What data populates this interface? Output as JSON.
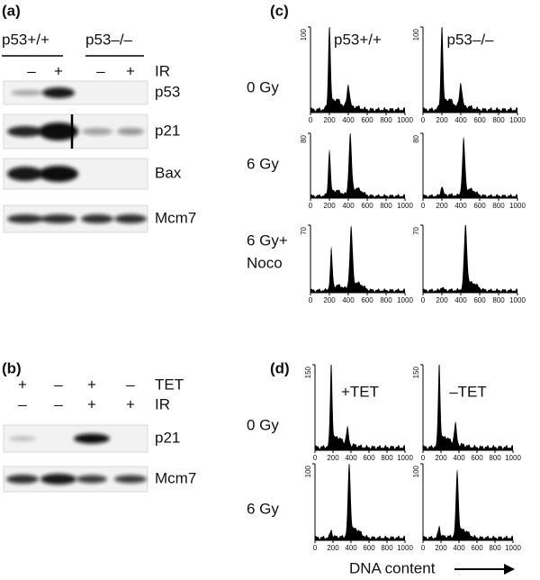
{
  "panel_a": {
    "label": "(a)",
    "genotypes": [
      "p53+/+",
      "p53–/–"
    ],
    "treatment_signs": [
      "–",
      "+",
      "–",
      "+"
    ],
    "treatment": "IR",
    "blots": [
      "p53",
      "p21",
      "Bax",
      "Mcm7"
    ]
  },
  "panel_b": {
    "label": "(b)",
    "rows": [
      {
        "signs": [
          "+",
          "–",
          "+",
          "–"
        ],
        "name": "TET"
      },
      {
        "signs": [
          "–",
          "–",
          "+",
          "+"
        ],
        "name": "IR"
      }
    ],
    "blots": [
      "p21",
      "Mcm7"
    ]
  },
  "panel_c": {
    "label": "(c)",
    "columns": [
      "p53+/+",
      "p53–/–"
    ],
    "rows": [
      {
        "label": [
          "0 Gy"
        ],
        "ymax": 100
      },
      {
        "label": [
          "6 Gy"
        ],
        "ymax": 80
      },
      {
        "label": [
          "6 Gy+",
          "Noco"
        ],
        "ymax": 70
      }
    ],
    "xticks": [
      0,
      200,
      400,
      600,
      800,
      1000
    ]
  },
  "panel_d": {
    "label": "(d)",
    "columns": [
      "+TET",
      "–TET"
    ],
    "rows": [
      {
        "label": [
          "0 Gy"
        ],
        "ymax": 150
      },
      {
        "label": [
          "6 Gy"
        ],
        "ymax": 100
      }
    ],
    "xticks": [
      0,
      200,
      400,
      600,
      800,
      1000
    ]
  },
  "x_axis_title": "DNA content"
}
